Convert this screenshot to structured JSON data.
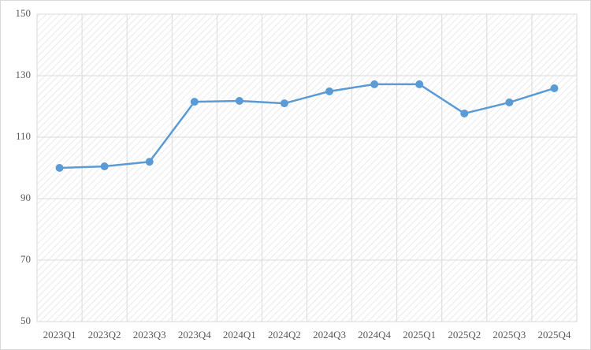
{
  "chart_data": {
    "type": "line",
    "categories": [
      "2023Q1",
      "2023Q2",
      "2023Q3",
      "2023Q4",
      "2024Q1",
      "2024Q2",
      "2024Q3",
      "2024Q4",
      "2025Q1",
      "2025Q2",
      "2025Q3",
      "2025Q4"
    ],
    "values": [
      100,
      100.5,
      102,
      121.5,
      121.8,
      121,
      124.9,
      127.2,
      127.2,
      117.7,
      121.3,
      125.9
    ],
    "color": "#5b9bd5",
    "ylim": [
      50,
      150
    ],
    "yticks": [
      50,
      70,
      90,
      110,
      130,
      150
    ],
    "grid": true
  }
}
